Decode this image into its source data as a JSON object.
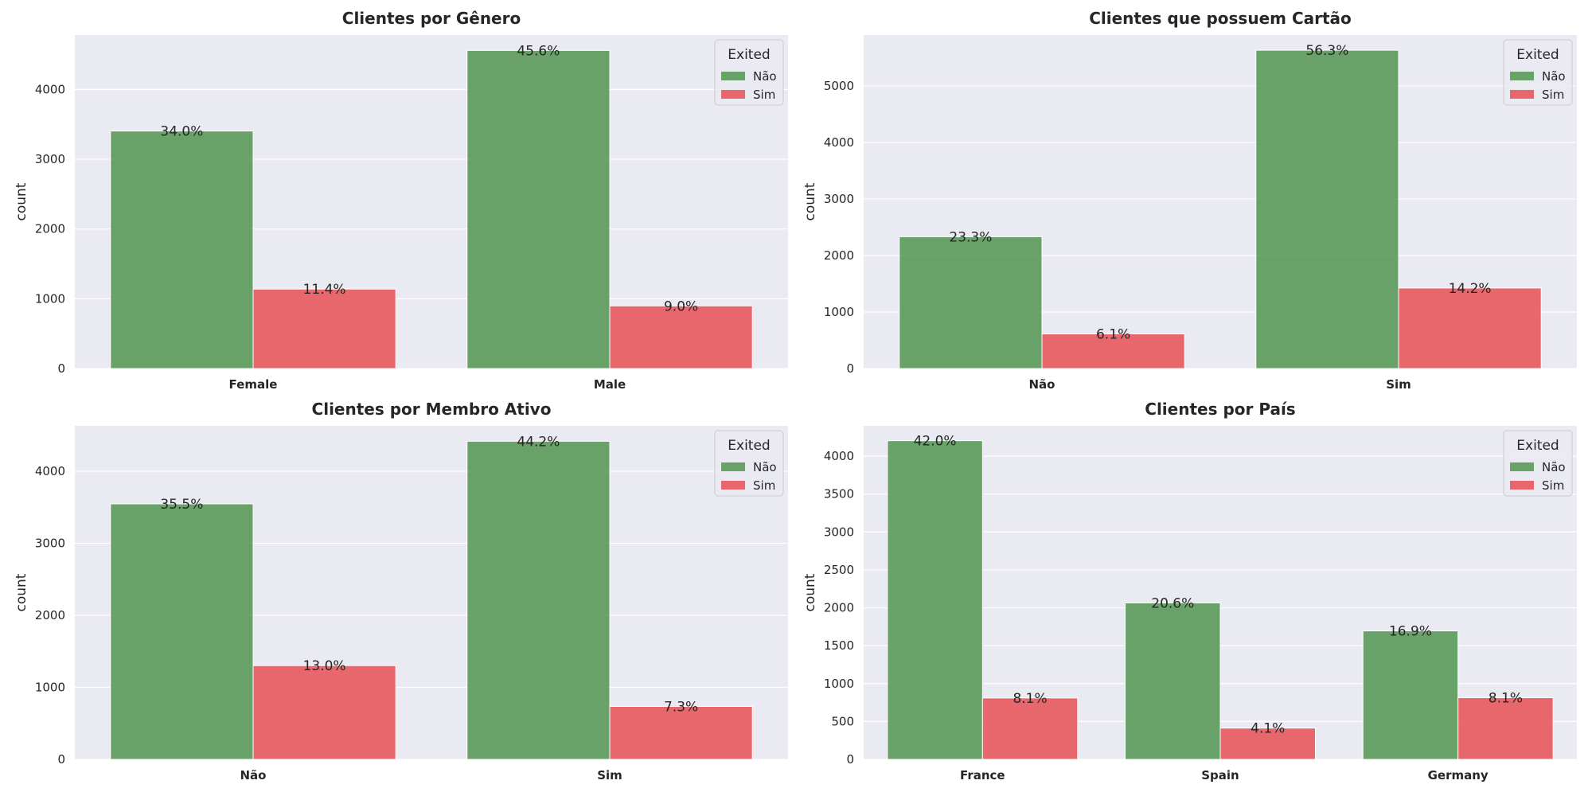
{
  "colors": {
    "background": "#eaeaf2",
    "grid": "#ffffff",
    "nao": "#5a9a5a",
    "sim": "#e8595e"
  },
  "chart_data": [
    {
      "type": "bar",
      "title": "Clientes por Gênero",
      "xlabel": "",
      "ylabel": "count",
      "categories": [
        "Female",
        "Male"
      ],
      "ylim": [
        0,
        4780
      ],
      "yticks": [
        0,
        1000,
        2000,
        3000,
        4000
      ],
      "grid": true,
      "legend": {
        "title": "Exited",
        "position": "top-right"
      },
      "series": [
        {
          "name": "Não",
          "values": [
            3404,
            4559
          ],
          "labels": [
            "34.0%",
            "45.6%"
          ]
        },
        {
          "name": "Sim",
          "values": [
            1139,
            898
          ],
          "labels": [
            "11.4%",
            "9.0%"
          ]
        }
      ]
    },
    {
      "type": "bar",
      "title": "Clientes que possuem Cartão",
      "xlabel": "",
      "ylabel": "count",
      "categories": [
        "Não",
        "Sim"
      ],
      "ylim": [
        0,
        5900
      ],
      "yticks": [
        0,
        1000,
        2000,
        3000,
        4000,
        5000
      ],
      "grid": true,
      "legend": {
        "title": "Exited",
        "position": "top-right"
      },
      "series": [
        {
          "name": "Não",
          "values": [
            2332,
            5631
          ],
          "labels": [
            "23.3%",
            "56.3%"
          ]
        },
        {
          "name": "Sim",
          "values": [
            613,
            1424
          ],
          "labels": [
            "6.1%",
            "14.2%"
          ]
        }
      ]
    },
    {
      "type": "bar",
      "title": "Clientes por Membro Ativo",
      "xlabel": "",
      "ylabel": "count",
      "categories": [
        "Não",
        "Sim"
      ],
      "ylim": [
        0,
        4630
      ],
      "yticks": [
        0,
        1000,
        2000,
        3000,
        4000
      ],
      "grid": true,
      "legend": {
        "title": "Exited",
        "position": "top-right"
      },
      "series": [
        {
          "name": "Não",
          "values": [
            3547,
            4416
          ],
          "labels": [
            "35.5%",
            "44.2%"
          ]
        },
        {
          "name": "Sim",
          "values": [
            1302,
            735
          ],
          "labels": [
            "13.0%",
            "7.3%"
          ]
        }
      ]
    },
    {
      "type": "bar",
      "title": "Clientes por País",
      "xlabel": "",
      "ylabel": "count",
      "categories": [
        "France",
        "Spain",
        "Germany"
      ],
      "ylim": [
        0,
        4400
      ],
      "yticks": [
        0,
        500,
        1000,
        1500,
        2000,
        2500,
        3000,
        3500,
        4000
      ],
      "grid": true,
      "legend": {
        "title": "Exited",
        "position": "top-right"
      },
      "series": [
        {
          "name": "Não",
          "values": [
            4204,
            2064,
            1695
          ],
          "labels": [
            "42.0%",
            "20.6%",
            "16.9%"
          ]
        },
        {
          "name": "Sim",
          "values": [
            810,
            413,
            814
          ],
          "labels": [
            "8.1%",
            "4.1%",
            "8.1%"
          ]
        }
      ]
    }
  ]
}
